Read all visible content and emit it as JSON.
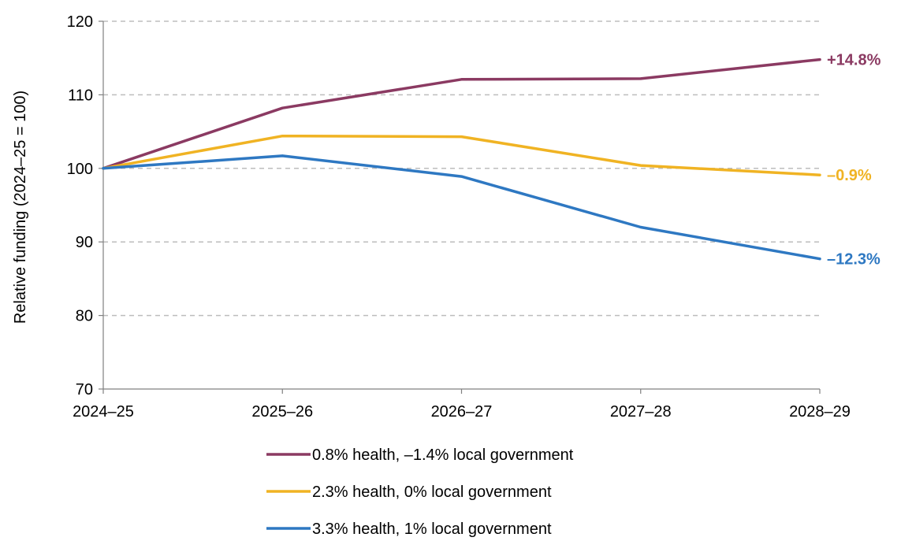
{
  "chart_data": {
    "type": "line",
    "title": "",
    "xlabel": "",
    "ylabel": "Relative funding (2024–25 = 100)",
    "categories": [
      "2024–25",
      "2025–26",
      "2026–27",
      "2027–28",
      "2028–29"
    ],
    "ylim": [
      70,
      120
    ],
    "yticks": [
      70,
      80,
      90,
      100,
      110,
      120
    ],
    "grid": true,
    "legend_position": "bottom",
    "series": [
      {
        "name": "0.8% health, –1.4% local government",
        "color": "#8B3A62",
        "values": [
          100,
          108.2,
          112.1,
          112.2,
          114.8
        ],
        "end_label": "+14.8%"
      },
      {
        "name": "2.3% health, 0% local government",
        "color": "#F0B323",
        "values": [
          100,
          104.4,
          104.3,
          100.4,
          99.1
        ],
        "end_label": "–0.9%"
      },
      {
        "name": "3.3% health, 1% local government",
        "color": "#2E78C2",
        "values": [
          100,
          101.7,
          98.9,
          92.0,
          87.7
        ],
        "end_label": "–12.3%"
      }
    ]
  }
}
